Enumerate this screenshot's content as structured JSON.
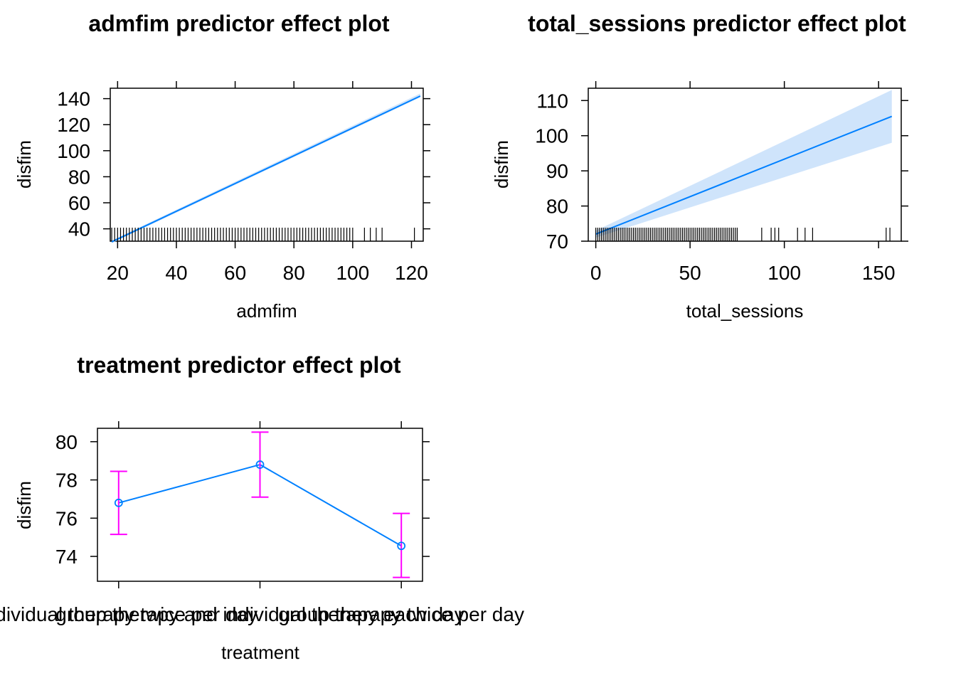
{
  "chart_data": [
    {
      "type": "line",
      "title": "admfim predictor effect plot",
      "xlabel": "admfim",
      "ylabel": "disfim",
      "xlim": [
        17.5,
        124
      ],
      "ylim": [
        30.5,
        148
      ],
      "xticks": [
        "20",
        "40",
        "60",
        "80",
        "100",
        "120"
      ],
      "yticks": [
        "40",
        "60",
        "80",
        "100",
        "120",
        "140"
      ],
      "line": {
        "x": [
          18,
          123
        ],
        "y": [
          30,
          142
        ]
      },
      "band": {
        "x": [
          18,
          123
        ],
        "lower": [
          29,
          141
        ],
        "upper": [
          31,
          144
        ]
      },
      "rug": [
        18,
        19,
        20,
        21,
        22,
        23,
        24,
        25,
        26,
        27,
        28,
        29,
        30,
        31,
        32,
        33,
        34,
        35,
        36,
        37,
        38,
        39,
        40,
        41,
        42,
        43,
        44,
        45,
        46,
        47,
        48,
        49,
        50,
        51,
        52,
        53,
        54,
        55,
        56,
        57,
        58,
        59,
        60,
        61,
        62,
        63,
        64,
        65,
        66,
        67,
        68,
        69,
        70,
        71,
        72,
        73,
        74,
        75,
        76,
        77,
        78,
        79,
        80,
        81,
        82,
        83,
        84,
        85,
        86,
        87,
        88,
        89,
        90,
        91,
        92,
        93,
        94,
        95,
        96,
        97,
        98,
        99,
        100,
        104,
        106,
        108,
        110,
        121
      ],
      "colors": {
        "line": "#0080ff",
        "band": "#cfe4fb",
        "rug": "#000000"
      }
    },
    {
      "type": "line",
      "title": "total_sessions predictor effect plot",
      "xlabel": "total_sessions",
      "ylabel": "disfim",
      "xlim": [
        -4,
        162
      ],
      "ylim": [
        70,
        113.5
      ],
      "xticks": [
        "0",
        "50",
        "100",
        "150"
      ],
      "yticks": [
        "70",
        "80",
        "90",
        "100",
        "110"
      ],
      "line": {
        "x": [
          0,
          157
        ],
        "y": [
          72,
          105.5
        ]
      },
      "band": {
        "x": [
          0,
          157
        ],
        "lower": [
          71,
          98
        ],
        "upper": [
          73,
          113
        ]
      },
      "rug": [
        0,
        1,
        2,
        3,
        4,
        5,
        6,
        7,
        8,
        9,
        10,
        11,
        12,
        13,
        14,
        15,
        16,
        17,
        18,
        19,
        20,
        21,
        22,
        23,
        24,
        25,
        26,
        27,
        28,
        29,
        30,
        31,
        32,
        33,
        34,
        35,
        36,
        37,
        38,
        39,
        40,
        41,
        42,
        43,
        44,
        45,
        46,
        47,
        48,
        49,
        50,
        51,
        52,
        53,
        54,
        55,
        56,
        57,
        58,
        59,
        60,
        61,
        62,
        63,
        64,
        65,
        66,
        67,
        68,
        69,
        70,
        71,
        72,
        73,
        74,
        75,
        88,
        93,
        95,
        97,
        107,
        111,
        115,
        154,
        156
      ],
      "colors": {
        "line": "#0080ff",
        "band": "#cfe4fb",
        "rug": "#000000"
      }
    },
    {
      "type": "line",
      "title": "treatment predictor effect plot",
      "xlabel": "treatment",
      "ylabel": "disfim",
      "ylim": [
        72.7,
        80.7
      ],
      "yticks": [
        "74",
        "76",
        "78",
        "80"
      ],
      "categories": [
        "individual therapy twice per day",
        "group therapy and individual therapy each day",
        "group therapy twice per day"
      ],
      "values": [
        76.8,
        78.8,
        74.55
      ],
      "lower": [
        75.15,
        77.1,
        72.9
      ],
      "upper": [
        78.45,
        80.5,
        76.25
      ],
      "colors": {
        "line": "#0080ff",
        "errorbar": "#ff00ff"
      }
    }
  ]
}
